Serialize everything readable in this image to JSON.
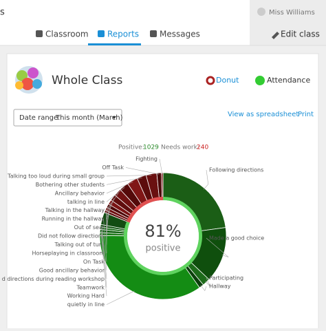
{
  "header": {
    "cut_title": "s",
    "tabs": [
      "Classroom",
      "Reports",
      "Messages"
    ],
    "active_tab": 1,
    "user": "Miss Williams",
    "edit": "Edit class"
  },
  "card": {
    "title": "Whole Class",
    "donut_link": "Donut",
    "attendance_link": "Attendance",
    "date_label": "Date range:",
    "date_value": "This month (March)",
    "spreadsheet_link": "View as spreadsheet",
    "print_link": "Print"
  },
  "chart_data": {
    "type": "donut",
    "positive_label": "Positive:",
    "positive_value": 1029,
    "positive_color": "#5fd35f",
    "negative_label": "Needs work:",
    "negative_value": 240,
    "negative_color": "#e05252",
    "center_value": "81%",
    "center_label": "positive",
    "categories": [
      "Following directions",
      "Made a good choice",
      "Participating",
      "Hallway",
      "quietly in line",
      "Working Hard",
      "Teamwork",
      "d directions during reading workshop",
      "Good ancillary behavior",
      "On Task",
      "Horseplaying in classroom",
      "Talking out of turn",
      "Did not follow directions",
      "Out of seat",
      "Running in the hallway",
      "Talking in the hallway",
      "talking in line",
      "Ancillary behavior",
      "Bothering other students",
      "Talking too loud during small group",
      "Off Task",
      "Fighting"
    ],
    "values": [
      290,
      180,
      25,
      15,
      443,
      10,
      10,
      8,
      8,
      40,
      8,
      10,
      12,
      15,
      20,
      25,
      30,
      35,
      30,
      35,
      15,
      5
    ],
    "colors": [
      "#1b5e16",
      "#0f4f0d",
      "#1d6b1a",
      "#0b3f0b",
      "#148c14",
      "#1f7a1c",
      "#106010",
      "#1a6e18",
      "#0e540e",
      "#124d12",
      "#5a0c0c",
      "#6e1010",
      "#4e0808",
      "#7a1414",
      "#600e0e",
      "#701212",
      "#540a0a",
      "#801616",
      "#5c0c0c",
      "#6a1010",
      "#4a0808",
      "#741313"
    ]
  }
}
